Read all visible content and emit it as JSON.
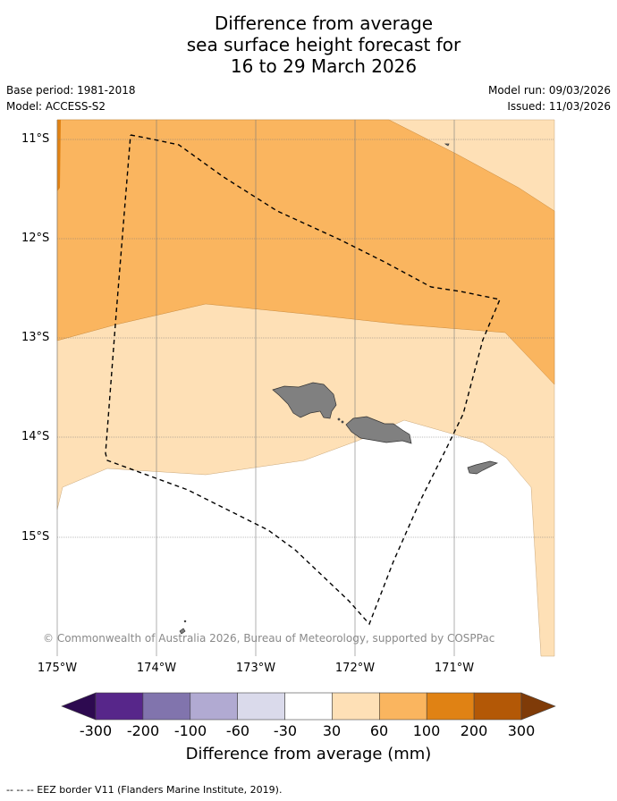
{
  "title": {
    "line1": "Difference from average",
    "line2": "sea surface height forecast for",
    "line3": "16 to 29 March 2026"
  },
  "meta": {
    "base_period": "Base period: 1981-2018",
    "model": "Model: ACCESS-S2",
    "model_run": "Model run: 09/03/2026",
    "issued": "Issued: 11/03/2026"
  },
  "map": {
    "lat_labels": [
      "11°S",
      "12°S",
      "13°S",
      "14°S",
      "15°S"
    ],
    "lon_labels": [
      "175°W",
      "174°W",
      "173°W",
      "172°W",
      "171°W"
    ],
    "copyright": "© Commonwealth of Australia 2026, Bureau of Meteorology, supported by COSPPac",
    "land_color": "#808080"
  },
  "colorbar": {
    "title": "Difference from average (mm)",
    "ticks": [
      "-300",
      "-200",
      "-100",
      "-60",
      "-30",
      "30",
      "60",
      "100",
      "200",
      "300"
    ],
    "colors": [
      "#2d0a50",
      "#57268a",
      "#8174ad",
      "#b1aad2",
      "#dadaeb",
      "#ffffff",
      "#fee0b6",
      "#fab55f",
      "#e08214",
      "#b35806",
      "#7f3b08"
    ]
  },
  "footnote": "--  --  -- EEZ border V11 (Flanders Marine Institute, 2019)."
}
